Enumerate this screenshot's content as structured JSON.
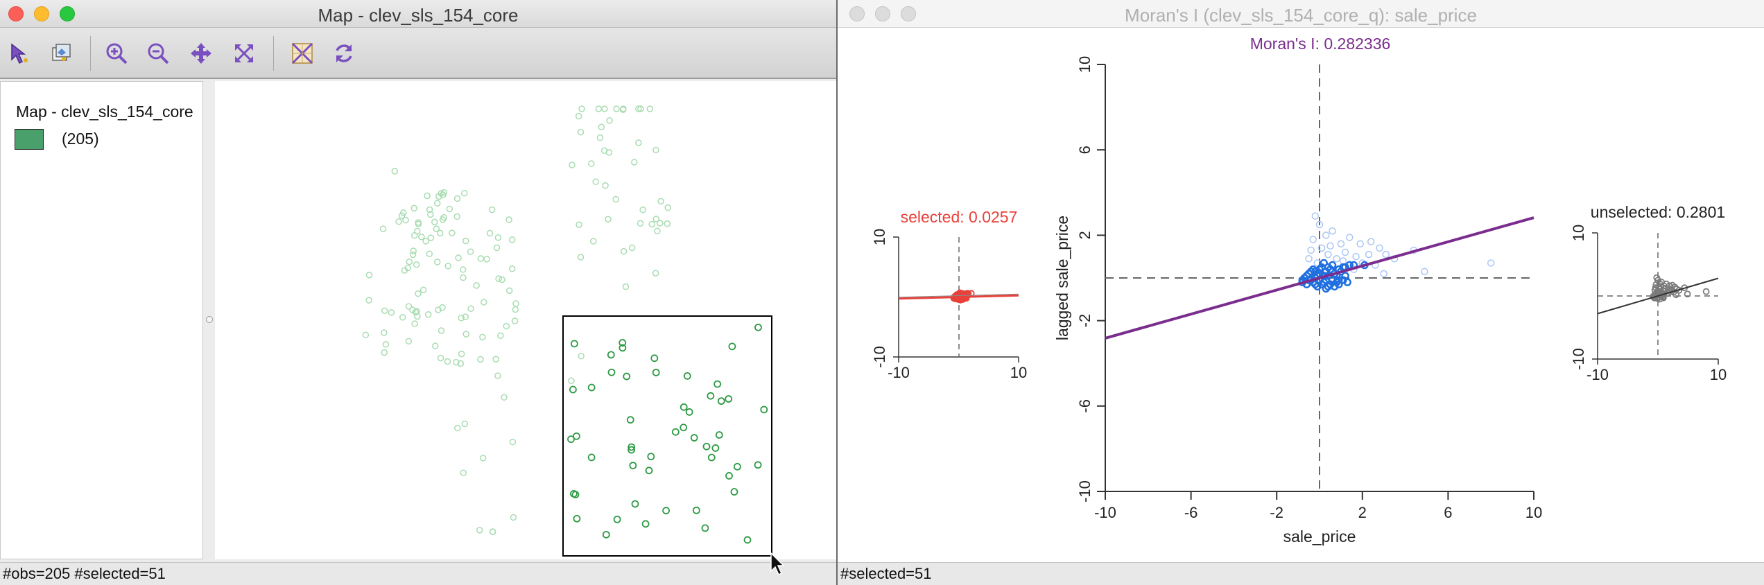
{
  "map_window": {
    "title": "Map - clev_sls_154_core",
    "toolbar_icons": [
      "select-arrow-icon",
      "map-layers-icon",
      "zoom-in-icon",
      "zoom-out-icon",
      "pan-icon",
      "full-extent-icon",
      "basemap-icon",
      "refresh-icon"
    ],
    "legend": {
      "title": "Map - clev_sls_154_core",
      "category_count": "(205)",
      "swatch_color": "#4aa06a"
    },
    "status": "#obs=205 #selected=51"
  },
  "moran_window": {
    "title": "Moran's I (clev_sls_154_core_q): sale_price",
    "status": "#selected=51",
    "colors": {
      "moran_line": "#7b2d8e",
      "selected": "#e8413a",
      "points": "#1f6fe0",
      "unselected_line": "#333333"
    }
  },
  "chart_data": [
    {
      "type": "scatter",
      "title": "Moran's I: 0.282336",
      "xlabel": "sale_price",
      "ylabel": "lagged sale_price",
      "xlim": [
        -10,
        10
      ],
      "ylim": [
        -10,
        10
      ],
      "x_ticks": [
        "-10",
        "-6",
        "-2",
        "2",
        "6",
        "10"
      ],
      "y_ticks": [
        "-10",
        "-6",
        "-2",
        "2",
        "6",
        "10"
      ],
      "slope": 0.282336,
      "selected_points": [
        [
          -0.4,
          -0.1
        ],
        [
          -0.2,
          -0.3
        ],
        [
          0.0,
          0.2
        ],
        [
          0.2,
          -0.2
        ],
        [
          0.4,
          0.1
        ],
        [
          0.6,
          -0.1
        ],
        [
          -0.6,
          -0.3
        ],
        [
          -0.8,
          -0.1
        ],
        [
          0.8,
          -0.2
        ],
        [
          1.0,
          0.3
        ],
        [
          -0.3,
          0.4
        ],
        [
          0.1,
          0.5
        ],
        [
          0.3,
          -0.5
        ],
        [
          -0.5,
          0.2
        ],
        [
          0.5,
          0.4
        ],
        [
          0.7,
          0.2
        ],
        [
          -0.1,
          -0.4
        ],
        [
          0.9,
          -0.3
        ],
        [
          -0.7,
          0.0
        ],
        [
          0.2,
          0.7
        ],
        [
          1.2,
          0.5
        ],
        [
          0.6,
          0.6
        ],
        [
          -0.2,
          0.0
        ],
        [
          0.4,
          -0.4
        ],
        [
          1.1,
          -0.1
        ],
        [
          -0.4,
          0.3
        ],
        [
          0.0,
          -0.1
        ],
        [
          0.8,
          0.1
        ],
        [
          -0.6,
          0.1
        ],
        [
          1.4,
          0.6
        ],
        [
          0.3,
          0.3
        ],
        [
          -0.1,
          0.1
        ],
        [
          0.5,
          -0.3
        ],
        [
          1.2,
          0.1
        ],
        [
          -0.8,
          -0.2
        ],
        [
          0.0,
          0.4
        ],
        [
          0.7,
          -0.4
        ],
        [
          1.6,
          0.6
        ],
        [
          -0.3,
          -0.2
        ],
        [
          0.9,
          0.4
        ],
        [
          0.1,
          -0.3
        ],
        [
          0.4,
          0.5
        ],
        [
          1.1,
          0.5
        ],
        [
          -0.5,
          -0.1
        ],
        [
          0.2,
          0.1
        ],
        [
          0.6,
          0.3
        ],
        [
          0.9,
          -0.1
        ],
        [
          -0.2,
          0.3
        ],
        [
          1.3,
          -0.2
        ],
        [
          0.3,
          -0.1
        ],
        [
          2.1,
          0.6
        ]
      ],
      "unselected_points": [
        [
          -0.4,
          1.3
        ],
        [
          -0.3,
          1.8
        ],
        [
          0.0,
          2.5
        ],
        [
          -0.2,
          2.9
        ],
        [
          0.3,
          2.0
        ],
        [
          0.5,
          1.5
        ],
        [
          1.0,
          1.6
        ],
        [
          1.4,
          1.9
        ],
        [
          1.9,
          1.6
        ],
        [
          2.4,
          1.7
        ],
        [
          2.8,
          1.4
        ],
        [
          3.1,
          1.1
        ],
        [
          3.5,
          0.9
        ],
        [
          1.2,
          1.2
        ],
        [
          0.8,
          0.9
        ],
        [
          1.6,
          0.4
        ],
        [
          2.0,
          0.7
        ],
        [
          2.6,
          0.6
        ],
        [
          1.7,
          1.0
        ],
        [
          0.4,
          1.1
        ],
        [
          4.4,
          1.3
        ],
        [
          4.9,
          0.3
        ],
        [
          8.0,
          0.7
        ],
        [
          -0.5,
          0.9
        ],
        [
          0.1,
          1.4
        ],
        [
          0.6,
          2.2
        ],
        [
          1.1,
          0.8
        ],
        [
          2.3,
          1.1
        ],
        [
          -0.1,
          0.7
        ],
        [
          3.0,
          0.2
        ]
      ]
    },
    {
      "type": "scatter",
      "title": "selected: 0.0257",
      "xlim": [
        -10,
        10
      ],
      "ylim": [
        -10,
        10
      ],
      "x_ticks": [
        "-10",
        "10"
      ],
      "y_ticks": [
        "-10",
        "10"
      ],
      "slope": 0.0257
    },
    {
      "type": "scatter",
      "title": "unselected: 0.2801",
      "xlim": [
        -10,
        10
      ],
      "ylim": [
        -10,
        10
      ],
      "x_ticks": [
        "-10",
        "10"
      ],
      "y_ticks": [
        "-10",
        "10"
      ],
      "slope": 0.2801
    }
  ]
}
